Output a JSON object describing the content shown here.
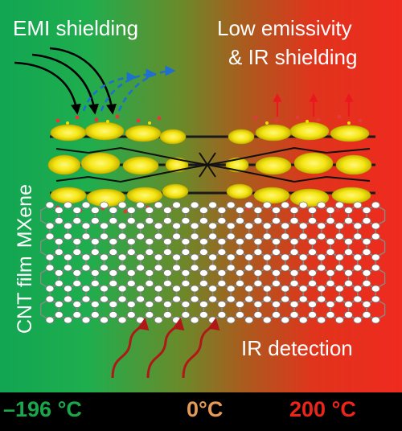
{
  "labels": {
    "emi_shielding": "EMI shielding",
    "low_emissivity": "Low emissivity",
    "ir_shielding": "& IR shielding",
    "ir_detection": "IR detection",
    "cnt_film": "CNT film",
    "mxene": "MXene"
  },
  "temperatures": {
    "cold": "–196 °C",
    "zero": "0°C",
    "hot": "200 °C"
  },
  "colors": {
    "green": "#1fae4e",
    "red": "#ef2a1e",
    "cold_text": "#18a84a",
    "zero_text": "#e59a55",
    "hot_text": "#ef2419",
    "incoming_arrows": "#000000",
    "reflected_arrows": "#1e6fd0",
    "emitted_arrows": "#e8181e",
    "detection_arrows": "#b01818"
  }
}
